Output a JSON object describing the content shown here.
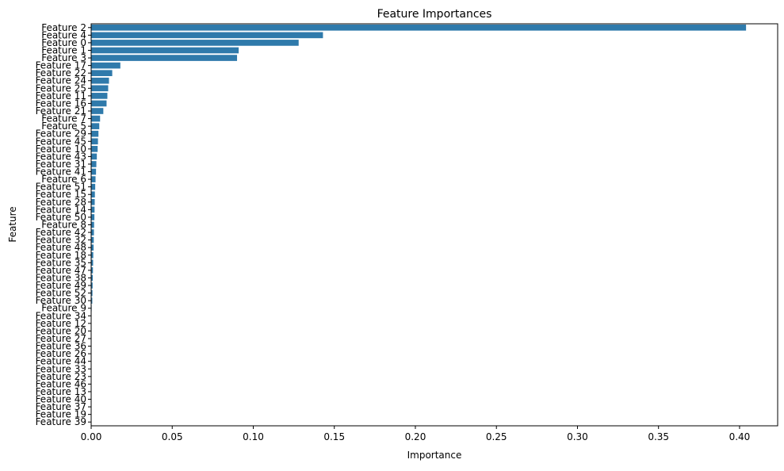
{
  "chart_data": {
    "type": "bar",
    "orientation": "horizontal",
    "title": "Feature Importances",
    "xlabel": "Importance",
    "ylabel": "Feature",
    "xlim": [
      0.0,
      0.4235
    ],
    "xticks": [
      "0.00",
      "0.05",
      "0.10",
      "0.15",
      "0.20",
      "0.25",
      "0.30",
      "0.35",
      "0.40"
    ],
    "grid": false,
    "bar_color": "#2f7aab",
    "categories": [
      "Feature 2",
      "Feature 4",
      "Feature 0",
      "Feature 1",
      "Feature 3",
      "Feature 17",
      "Feature 22",
      "Feature 24",
      "Feature 25",
      "Feature 11",
      "Feature 16",
      "Feature 21",
      "Feature 7",
      "Feature 5",
      "Feature 29",
      "Feature 45",
      "Feature 10",
      "Feature 43",
      "Feature 31",
      "Feature 41",
      "Feature 6",
      "Feature 51",
      "Feature 15",
      "Feature 28",
      "Feature 14",
      "Feature 50",
      "Feature 8",
      "Feature 42",
      "Feature 32",
      "Feature 48",
      "Feature 18",
      "Feature 35",
      "Feature 47",
      "Feature 38",
      "Feature 49",
      "Feature 52",
      "Feature 30",
      "Feature 9",
      "Feature 34",
      "Feature 12",
      "Feature 20",
      "Feature 27",
      "Feature 36",
      "Feature 26",
      "Feature 44",
      "Feature 33",
      "Feature 23",
      "Feature 46",
      "Feature 13",
      "Feature 40",
      "Feature 37",
      "Feature 19",
      "Feature 39"
    ],
    "values": [
      0.404,
      0.143,
      0.128,
      0.091,
      0.09,
      0.018,
      0.013,
      0.011,
      0.0105,
      0.01,
      0.0095,
      0.0075,
      0.0055,
      0.005,
      0.0045,
      0.0042,
      0.004,
      0.0035,
      0.0032,
      0.003,
      0.0027,
      0.0025,
      0.0023,
      0.0022,
      0.0021,
      0.002,
      0.0018,
      0.0017,
      0.0016,
      0.0015,
      0.0013,
      0.0012,
      0.0011,
      0.001,
      0.0009,
      0.0008,
      0.0007,
      0.0003,
      0.0002,
      0.0002,
      0.00015,
      0.00012,
      0.0001,
      0.0001,
      8e-05,
      6e-05,
      5e-05,
      4e-05,
      3e-05,
      2e-05,
      1e-05,
      5e-06,
      0.0
    ]
  }
}
